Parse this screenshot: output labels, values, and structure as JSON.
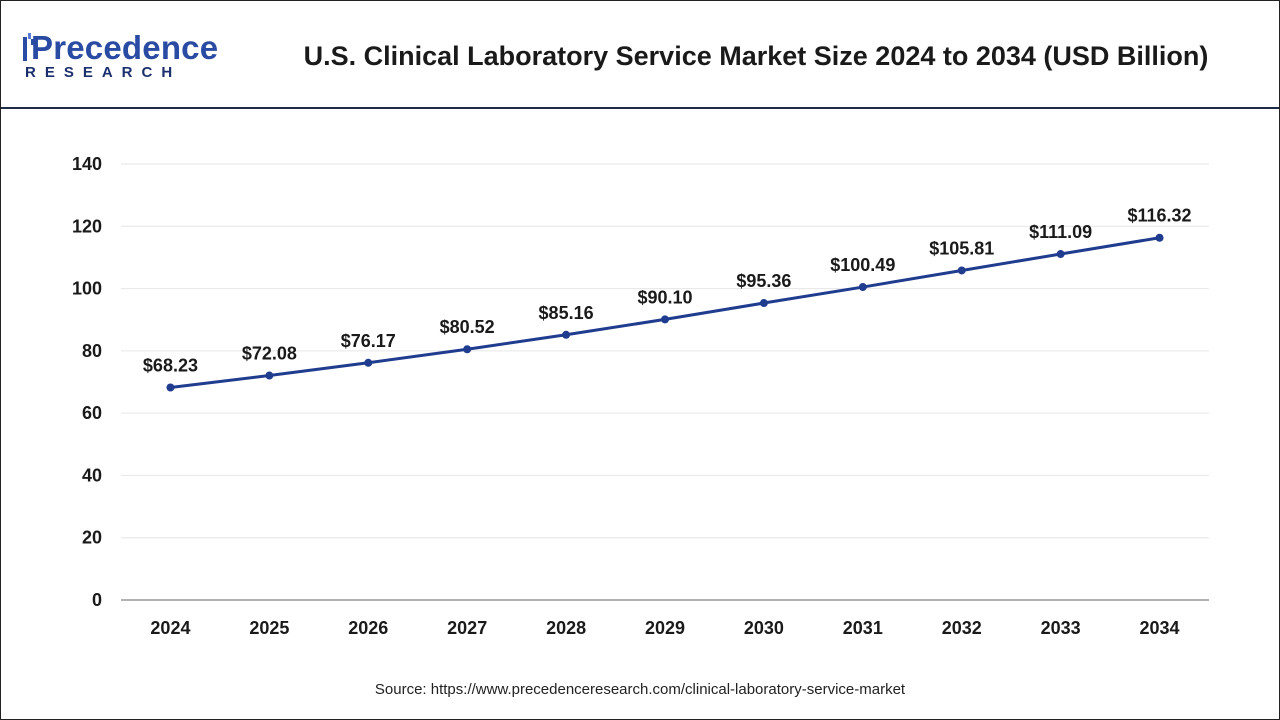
{
  "brand": {
    "name": "Precedence",
    "sub": "RESEARCH"
  },
  "colors": {
    "line": "#1f3c8f",
    "grid": "#e6e6e6",
    "axis": "#999999",
    "text": "#1a1a1a"
  },
  "source": "Source: https://www.precedenceresearch.com/clinical-laboratory-service-market",
  "chart_data": {
    "type": "line",
    "title": "U.S. Clinical Laboratory Service Market Size 2024 to 2034 (USD Billion)",
    "xlabel": "",
    "ylabel": "",
    "categories": [
      "2024",
      "2025",
      "2026",
      "2027",
      "2028",
      "2029",
      "2030",
      "2031",
      "2032",
      "2033",
      "2034"
    ],
    "series": [
      {
        "name": "Market Size",
        "values": [
          68.23,
          72.08,
          76.17,
          80.52,
          85.16,
          90.1,
          95.36,
          100.49,
          105.81,
          111.09,
          116.32
        ],
        "labels": [
          "$68.23",
          "$72.08",
          "$76.17",
          "$80.52",
          "$85.16",
          "$90.10",
          "$95.36",
          "$100.49",
          "$105.81",
          "$111.09",
          "$116.32"
        ]
      }
    ],
    "ylim": [
      0,
      140
    ],
    "yticks": [
      0,
      20,
      40,
      60,
      80,
      100,
      120,
      140
    ],
    "grid": true,
    "legend": "none"
  }
}
